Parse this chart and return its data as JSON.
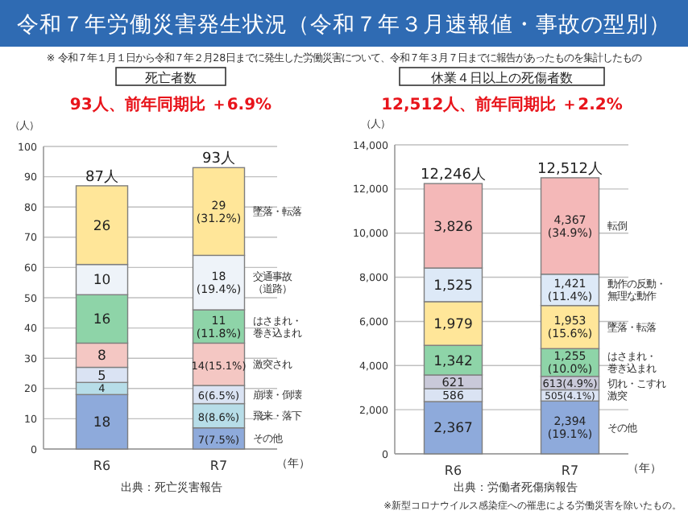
{
  "chart_data": [
    {
      "type": "bar",
      "stacked": true,
      "title": "死亡者数",
      "subtitle": "93人、前年同期比 ＋6.9%",
      "ylabel": "（人）",
      "xlabel": "（年）",
      "annotations": [
        "令和７年労働災害発生状況（令和７年３月速報値・事故の型別）",
        "※ 令和７年１月１日から令和７年２月28日までに発生した労働災害について、令和７年３月７日までに報告があったものを集計したもの",
        "出典：死亡災害報告"
      ],
      "categories": [
        "R6",
        "R7"
      ],
      "series": [
        {
          "name": "その他",
          "color": "#8eaadb",
          "values": [
            18,
            7
          ],
          "value_labels": [
            "18",
            "7(7.5%)"
          ]
        },
        {
          "name": "飛来・落下",
          "color": "#b7dde8",
          "values": [
            4,
            8
          ],
          "value_labels": [
            "4",
            "8(8.6%)"
          ]
        },
        {
          "name": "崩壊・倒壊",
          "color": "#dae3f3",
          "values": [
            5,
            6
          ],
          "value_labels": [
            "5",
            "6(6.5%)"
          ]
        },
        {
          "name": "激突され",
          "color": "#f4c7c3",
          "values": [
            8,
            14
          ],
          "value_labels": [
            "8",
            "14(15.1%)"
          ]
        },
        {
          "name": "はさまれ・巻き込まれ",
          "color": "#8ed4a8",
          "values": [
            16,
            11
          ],
          "value_labels": [
            "16",
            "11\n(11.8%)"
          ]
        },
        {
          "name": "交通事故（道路）",
          "color": "#eef3f9",
          "values": [
            10,
            18
          ],
          "value_labels": [
            "10",
            "18\n(19.4%)"
          ]
        },
        {
          "name": "墜落・転落",
          "color": "#ffe699",
          "values": [
            26,
            29
          ],
          "value_labels": [
            "26",
            "29\n(31.2%)"
          ]
        }
      ],
      "totals": [
        "87人",
        "93人"
      ],
      "ylim": [
        0,
        100
      ],
      "yticks": [
        0,
        10,
        20,
        30,
        40,
        50,
        60,
        70,
        80,
        90,
        100
      ],
      "grid": "y"
    },
    {
      "type": "bar",
      "stacked": true,
      "title": "休業４日以上の死傷者数",
      "subtitle": "12,512人、前年同期比 ＋2.2%",
      "ylabel": "（人）",
      "xlabel": "（年）",
      "annotations": [
        "出典：労働者死傷病報告",
        "※新型コロナウイルス感染症への罹患による労働災害を除いたもの。"
      ],
      "categories": [
        "R6",
        "R7"
      ],
      "series": [
        {
          "name": "その他",
          "color": "#8eaadb",
          "values": [
            2367,
            2394
          ],
          "value_labels": [
            "2,367",
            "2,394\n(19.1%)"
          ]
        },
        {
          "name": "激突",
          "color": "#dae3f3",
          "values": [
            586,
            505
          ],
          "value_labels": [
            "586",
            "505(4.1%)"
          ]
        },
        {
          "name": "切れ・こすれ",
          "color": "#c9c9d9",
          "values": [
            621,
            613
          ],
          "value_labels": [
            "621",
            "613(4.9%)"
          ]
        },
        {
          "name": "はさまれ・巻き込まれ",
          "color": "#8ed4a8",
          "values": [
            1342,
            1255
          ],
          "value_labels": [
            "1,342",
            "1,255\n(10.0%)"
          ]
        },
        {
          "name": "墜落・転落",
          "color": "#ffe699",
          "values": [
            1979,
            1953
          ],
          "value_labels": [
            "1,979",
            "1,953\n(15.6%)"
          ]
        },
        {
          "name": "動作の反動・無理な動作",
          "color": "#dde9f7",
          "values": [
            1525,
            1421
          ],
          "value_labels": [
            "1,525",
            "1,421\n(11.4%)"
          ]
        },
        {
          "name": "転倒",
          "color": "#f4b8b8",
          "values": [
            3826,
            4367
          ],
          "value_labels": [
            "3,826",
            "4,367\n(34.9%)"
          ]
        }
      ],
      "totals": [
        "12,246人",
        "12,512人"
      ],
      "ylim": [
        0,
        14000
      ],
      "yticks": [
        {
          "value": 0,
          "label": "0"
        },
        {
          "value": 2000,
          "label": "2,000"
        },
        {
          "value": 4000,
          "label": "4,000"
        },
        {
          "value": 6000,
          "label": "6,000"
        },
        {
          "value": 8000,
          "label": "8,000"
        },
        {
          "value": 10000,
          "label": "10,000"
        },
        {
          "value": 12000,
          "label": "12,000"
        },
        {
          "value": 14000,
          "label": "14,000"
        }
      ],
      "grid": "y"
    }
  ]
}
